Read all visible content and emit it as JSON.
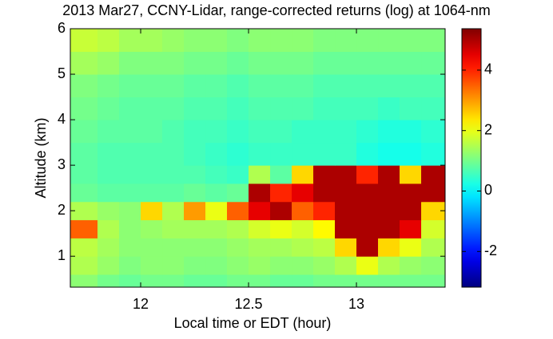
{
  "chart_data": {
    "type": "heatmap",
    "title": "2013 Mar27, CCNY-Lidar, range-corrected returns (log) at 1064-nm",
    "x_label": "Local time or EDT (hour)",
    "y_label": "Altitude (km)",
    "x_edges": [
      11.674,
      11.8,
      11.9,
      12.0,
      12.1,
      12.2,
      12.3,
      12.4,
      12.5,
      12.6,
      12.7,
      12.8,
      12.9,
      13.0,
      13.1,
      13.2,
      13.3,
      13.411
    ],
    "y_edges": [
      0.32,
      0.6,
      1.0,
      1.4,
      1.8,
      2.2,
      2.6,
      3.0,
      3.5,
      4.0,
      4.5,
      5.0,
      5.5,
      6.0
    ],
    "z": [
      [
        1.2,
        1.0,
        0.9,
        1.0,
        1.0,
        0.9,
        0.9,
        1.0,
        1.0,
        0.9,
        0.9,
        1.0,
        1.0,
        1.0,
        1.0,
        1.0,
        1.0
      ],
      [
        1.5,
        1.3,
        1.1,
        1.2,
        1.2,
        1.1,
        1.1,
        1.2,
        1.3,
        1.2,
        1.2,
        1.3,
        1.5,
        2.0,
        1.5,
        1.3,
        1.2
      ],
      [
        1.6,
        1.4,
        1.2,
        1.2,
        1.2,
        1.2,
        1.2,
        1.3,
        1.4,
        1.4,
        1.5,
        1.6,
        2.5,
        5.0,
        2.5,
        2.0,
        1.5
      ],
      [
        3.5,
        1.5,
        1.2,
        1.3,
        1.4,
        1.4,
        1.4,
        1.5,
        1.8,
        2.0,
        1.8,
        2.2,
        5.0,
        5.0,
        5.0,
        4.5,
        1.8
      ],
      [
        1.5,
        1.3,
        1.2,
        2.5,
        1.5,
        3.0,
        2.0,
        3.5,
        4.5,
        5.0,
        3.5,
        4.0,
        5.0,
        5.0,
        5.0,
        5.0,
        2.5
      ],
      [
        0.9,
        0.8,
        0.8,
        0.8,
        0.8,
        0.9,
        0.8,
        0.9,
        5.0,
        4.0,
        4.5,
        5.0,
        5.0,
        5.0,
        5.0,
        5.0,
        5.0
      ],
      [
        0.8,
        0.7,
        0.7,
        0.7,
        0.7,
        0.7,
        0.6,
        0.5,
        1.5,
        0.8,
        2.5,
        5.0,
        5.0,
        4.0,
        5.0,
        2.5,
        5.0
      ],
      [
        0.8,
        0.7,
        0.7,
        0.7,
        0.7,
        0.6,
        0.5,
        0.4,
        0.5,
        0.5,
        0.5,
        0.5,
        0.5,
        0.3,
        0.2,
        0.2,
        0.3
      ],
      [
        0.9,
        0.8,
        0.8,
        0.8,
        0.7,
        0.6,
        0.6,
        0.5,
        0.6,
        0.6,
        0.5,
        0.5,
        0.5,
        0.4,
        0.3,
        0.3,
        0.4
      ],
      [
        1.0,
        0.9,
        0.8,
        0.8,
        0.8,
        0.7,
        0.7,
        0.6,
        0.7,
        0.7,
        0.7,
        0.6,
        0.6,
        0.6,
        0.5,
        0.6,
        0.6
      ],
      [
        1.1,
        1.0,
        0.9,
        0.9,
        0.9,
        0.8,
        0.8,
        0.7,
        0.8,
        0.8,
        0.8,
        0.7,
        0.7,
        0.7,
        0.7,
        0.7,
        0.7
      ],
      [
        1.4,
        1.3,
        1.1,
        1.1,
        1.1,
        1.0,
        1.0,
        0.9,
        1.0,
        1.0,
        1.0,
        0.9,
        0.9,
        0.9,
        0.9,
        0.9,
        0.9
      ],
      [
        1.7,
        1.6,
        1.4,
        1.4,
        1.3,
        1.2,
        1.2,
        1.1,
        1.2,
        1.2,
        1.2,
        1.1,
        1.1,
        1.1,
        1.1,
        1.1,
        1.1
      ]
    ],
    "xlim": [
      11.674,
      13.411
    ],
    "xticks": [
      12,
      12.5,
      13
    ],
    "ylim": [
      0.32,
      6
    ],
    "yticks": [
      1,
      2,
      3,
      4,
      5,
      6
    ],
    "colormap": "jet",
    "zlim": [
      -3.18,
      5.37
    ],
    "zticks": [
      -2,
      0,
      2,
      4
    ]
  }
}
